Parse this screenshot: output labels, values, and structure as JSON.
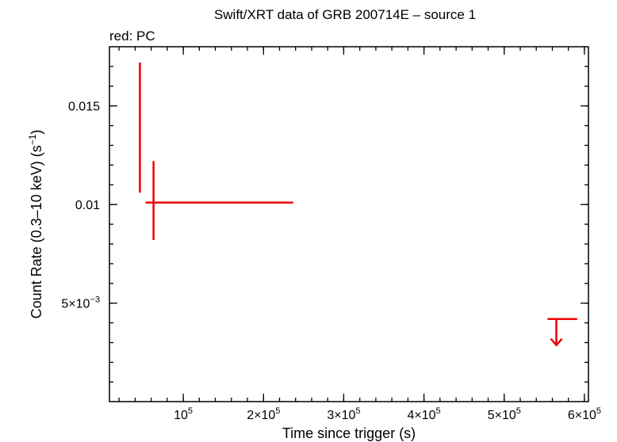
{
  "chart_data": {
    "type": "scatter",
    "title": "Swift/XRT data of GRB 200714E – source 1",
    "annotation": "red: PC",
    "xlabel": "Time since trigger (s)",
    "ylabel": {
      "main": "Count Rate (0.3–10 keV) (s",
      "sup": "−1",
      "end": ")"
    },
    "xlim": [
      8000,
      605000
    ],
    "ylim": [
      1e-05,
      0.018
    ],
    "grid": false,
    "x_ticks": [
      {
        "value": 100000,
        "mant": "",
        "exp": "5"
      },
      {
        "value": 200000,
        "mant": "2×",
        "exp": "5"
      },
      {
        "value": 300000,
        "mant": "3×",
        "exp": "5"
      },
      {
        "value": 400000,
        "mant": "4×",
        "exp": "5"
      },
      {
        "value": 500000,
        "mant": "5×",
        "exp": "5"
      },
      {
        "value": 600000,
        "mant": "6×",
        "exp": "5"
      }
    ],
    "x_minor_step": 20000,
    "y_ticks": [
      {
        "value": 0.005,
        "mant": "5×10",
        "exp": "−3"
      },
      {
        "value": 0.01,
        "label": "0.01"
      },
      {
        "value": 0.015,
        "label": "0.015"
      }
    ],
    "y_minor_step": 0.001,
    "series": [
      {
        "color": "#ee0000",
        "points": [
          {
            "x": 46000,
            "xlo": 45500,
            "xhi": 47000,
            "y": 0.0139,
            "ylo": 0.0106,
            "yhi": 0.0172
          },
          {
            "x": 63000,
            "xlo": 53000,
            "xhi": 237000,
            "y": 0.0101,
            "ylo": 0.0082,
            "yhi": 0.0122
          }
        ],
        "upper_limits": [
          {
            "x": 565000,
            "xlo": 554000,
            "xhi": 591000,
            "y": 0.0042
          }
        ]
      }
    ]
  }
}
